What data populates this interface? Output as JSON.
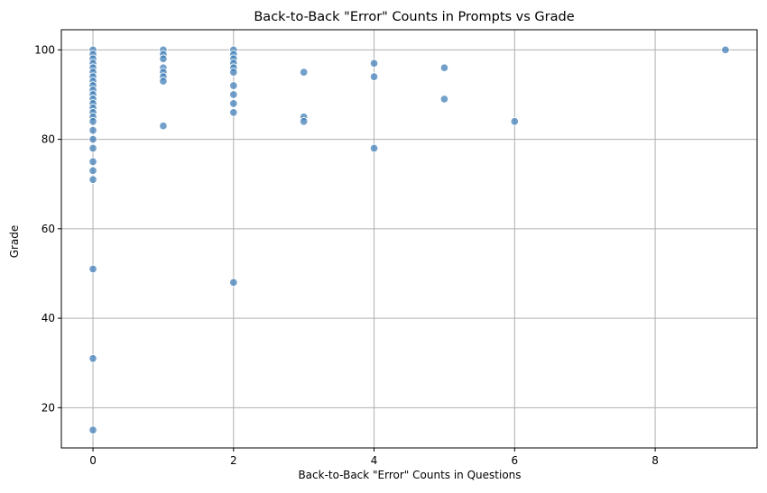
{
  "chart_data": {
    "type": "scatter",
    "title": "Back-to-Back \"Error\" Counts in Prompts vs Grade",
    "xlabel": "Back-to-Back \"Error\" Counts in Questions",
    "ylabel": "Grade",
    "xlim": [
      -0.45,
      9.45
    ],
    "ylim": [
      11,
      104.5
    ],
    "xticks": [
      0,
      2,
      4,
      6,
      8
    ],
    "yticks": [
      20,
      40,
      60,
      80,
      100
    ],
    "grid": true,
    "point_color": "#3b7bb5",
    "points": [
      {
        "x": 0,
        "y": 100
      },
      {
        "x": 0,
        "y": 99
      },
      {
        "x": 0,
        "y": 98
      },
      {
        "x": 0,
        "y": 97
      },
      {
        "x": 0,
        "y": 96
      },
      {
        "x": 0,
        "y": 95
      },
      {
        "x": 0,
        "y": 94
      },
      {
        "x": 0,
        "y": 93
      },
      {
        "x": 0,
        "y": 92
      },
      {
        "x": 0,
        "y": 91
      },
      {
        "x": 0,
        "y": 90
      },
      {
        "x": 0,
        "y": 89
      },
      {
        "x": 0,
        "y": 88
      },
      {
        "x": 0,
        "y": 87
      },
      {
        "x": 0,
        "y": 86
      },
      {
        "x": 0,
        "y": 85
      },
      {
        "x": 0,
        "y": 84
      },
      {
        "x": 0,
        "y": 82
      },
      {
        "x": 0,
        "y": 80
      },
      {
        "x": 0,
        "y": 78
      },
      {
        "x": 0,
        "y": 75
      },
      {
        "x": 0,
        "y": 73
      },
      {
        "x": 0,
        "y": 71
      },
      {
        "x": 0,
        "y": 51
      },
      {
        "x": 0,
        "y": 31
      },
      {
        "x": 0,
        "y": 15
      },
      {
        "x": 1,
        "y": 100
      },
      {
        "x": 1,
        "y": 99
      },
      {
        "x": 1,
        "y": 98
      },
      {
        "x": 1,
        "y": 96
      },
      {
        "x": 1,
        "y": 95
      },
      {
        "x": 1,
        "y": 94
      },
      {
        "x": 1,
        "y": 93
      },
      {
        "x": 1,
        "y": 83
      },
      {
        "x": 2,
        "y": 100
      },
      {
        "x": 2,
        "y": 99
      },
      {
        "x": 2,
        "y": 98
      },
      {
        "x": 2,
        "y": 97
      },
      {
        "x": 2,
        "y": 96
      },
      {
        "x": 2,
        "y": 95
      },
      {
        "x": 2,
        "y": 92
      },
      {
        "x": 2,
        "y": 90
      },
      {
        "x": 2,
        "y": 88
      },
      {
        "x": 2,
        "y": 86
      },
      {
        "x": 2,
        "y": 48
      },
      {
        "x": 3,
        "y": 95
      },
      {
        "x": 3,
        "y": 85
      },
      {
        "x": 3,
        "y": 84
      },
      {
        "x": 4,
        "y": 97
      },
      {
        "x": 4,
        "y": 94
      },
      {
        "x": 4,
        "y": 78
      },
      {
        "x": 5,
        "y": 96
      },
      {
        "x": 5,
        "y": 89
      },
      {
        "x": 6,
        "y": 84
      },
      {
        "x": 9,
        "y": 100
      }
    ]
  }
}
